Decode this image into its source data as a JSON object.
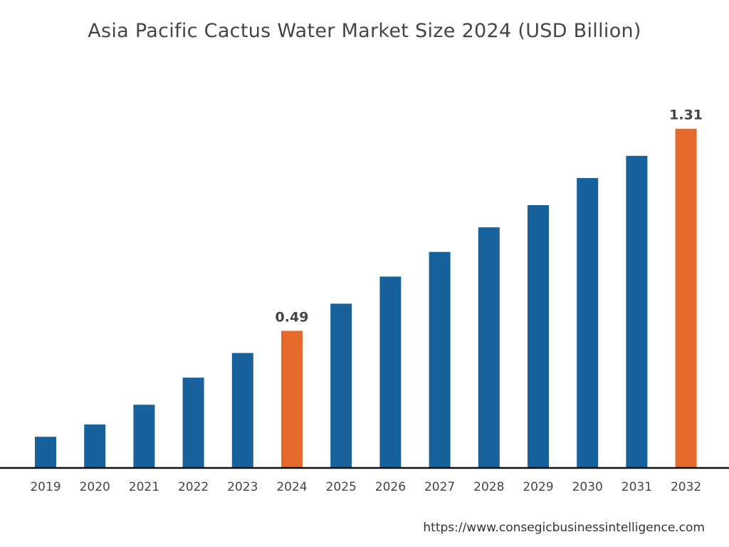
{
  "chart_data": {
    "type": "bar",
    "title": "Asia Pacific Cactus Water Market Size 2024 (USD Billion)",
    "categories": [
      "2019",
      "2020",
      "2021",
      "2022",
      "2023",
      "2024",
      "2025",
      "2026",
      "2027",
      "2028",
      "2029",
      "2030",
      "2031",
      "2032"
    ],
    "values": [
      0.06,
      0.11,
      0.19,
      0.3,
      0.4,
      0.49,
      0.6,
      0.71,
      0.81,
      0.91,
      1.0,
      1.11,
      1.2,
      1.31
    ],
    "data_labels": {
      "2024": "0.49",
      "2032": "1.31"
    },
    "highlighted": [
      "2024",
      "2032"
    ],
    "colors": {
      "default": "#17619c",
      "highlight": "#e4692a"
    },
    "xlabel": "",
    "ylabel": "",
    "grid": false
  },
  "footer": {
    "url": "https://www.consegicbusinessintelligence.com"
  }
}
